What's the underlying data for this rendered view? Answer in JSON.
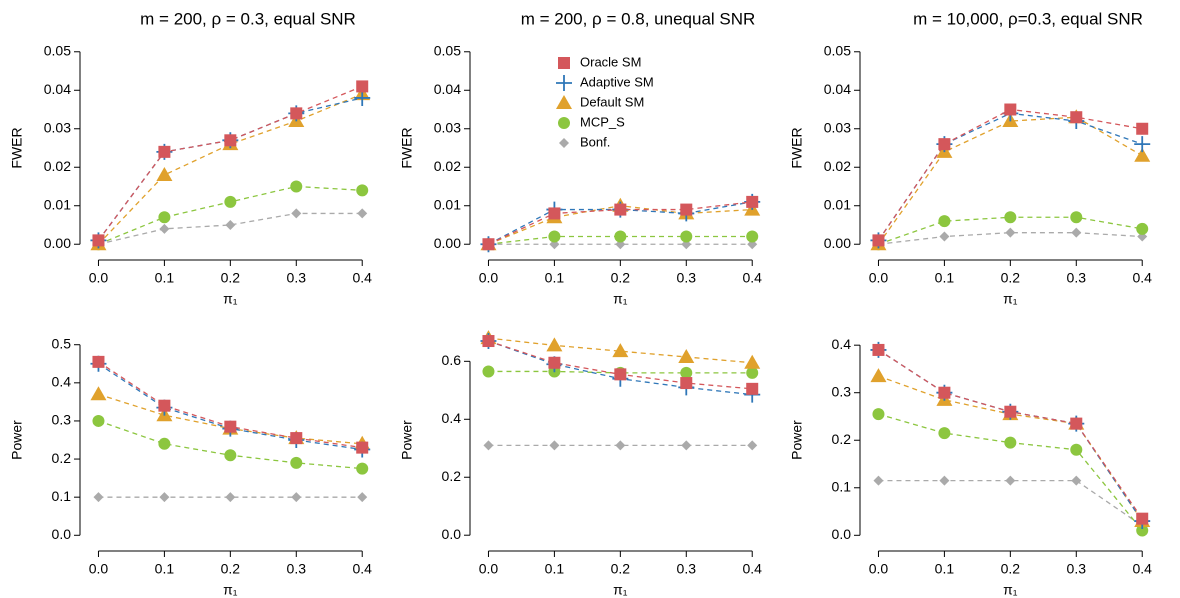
{
  "chart_data": [
    {
      "type": "line",
      "title": "m = 200, ρ = 0.3, equal SNR",
      "x_label": "π₁",
      "y_label": "FWER",
      "x": [
        0,
        0.1,
        0.2,
        0.3,
        0.4
      ],
      "xlim": [
        -0.028,
        0.43
      ],
      "xticks": [
        {
          "value": 0,
          "label": "0.0"
        },
        {
          "value": 0.1,
          "label": "0.1"
        },
        {
          "value": 0.2,
          "label": "0.2"
        },
        {
          "value": 0.3,
          "label": "0.3"
        },
        {
          "value": 0.4,
          "label": "0.4"
        }
      ],
      "ylim": [
        -0.0015,
        0.0515
      ],
      "yticks": [
        {
          "value": 0,
          "label": "0.00"
        },
        {
          "value": 0.01,
          "label": "0.01"
        },
        {
          "value": 0.02,
          "label": "0.02"
        },
        {
          "value": 0.03,
          "label": "0.03"
        },
        {
          "value": 0.04,
          "label": "0.04"
        },
        {
          "value": 0.05,
          "label": "0.05"
        }
      ],
      "series": [
        {
          "name": "Oracle SM",
          "color": "#d4575b",
          "marker": "square",
          "values": [
            0.001,
            0.024,
            0.027,
            0.034,
            0.041
          ]
        },
        {
          "name": "Adaptive SM",
          "color": "#2f77b8",
          "marker": "plus",
          "values": [
            0.001,
            0.024,
            0.027,
            0.034,
            0.038
          ]
        },
        {
          "name": "Default SM",
          "color": "#e0a12c",
          "marker": "triangle",
          "values": [
            0,
            0.018,
            0.026,
            0.032,
            0.039
          ]
        },
        {
          "name": "MCP_S",
          "color": "#8cc63f",
          "marker": "circle",
          "values": [
            0,
            0.007,
            0.011,
            0.015,
            0.014
          ]
        },
        {
          "name": "Bonf.",
          "color": "#aaaaaa",
          "marker": "diamond",
          "values": [
            0,
            0.004,
            0.005,
            0.008,
            0.008
          ]
        }
      ]
    },
    {
      "type": "line",
      "title": "m = 200, ρ = 0.8, unequal SNR",
      "x_label": "π₁",
      "y_label": "FWER",
      "legend": "top",
      "x": [
        0,
        0.1,
        0.2,
        0.3,
        0.4
      ],
      "xlim": [
        -0.028,
        0.43
      ],
      "xticks": [
        {
          "value": 0,
          "label": "0.0"
        },
        {
          "value": 0.1,
          "label": "0.1"
        },
        {
          "value": 0.2,
          "label": "0.2"
        },
        {
          "value": 0.3,
          "label": "0.3"
        },
        {
          "value": 0.4,
          "label": "0.4"
        }
      ],
      "ylim": [
        -0.0015,
        0.0515
      ],
      "yticks": [
        {
          "value": 0,
          "label": "0.00"
        },
        {
          "value": 0.01,
          "label": "0.01"
        },
        {
          "value": 0.02,
          "label": "0.02"
        },
        {
          "value": 0.03,
          "label": "0.03"
        },
        {
          "value": 0.04,
          "label": "0.04"
        },
        {
          "value": 0.05,
          "label": "0.05"
        }
      ],
      "series": [
        {
          "name": "Oracle SM",
          "color": "#d4575b",
          "marker": "square",
          "values": [
            0,
            0.008,
            0.009,
            0.009,
            0.011
          ]
        },
        {
          "name": "Adaptive SM",
          "color": "#2f77b8",
          "marker": "plus",
          "values": [
            0,
            0.009,
            0.009,
            0.008,
            0.011
          ]
        },
        {
          "name": "Default SM",
          "color": "#e0a12c",
          "marker": "triangle",
          "values": [
            0,
            0.007,
            0.01,
            0.008,
            0.009
          ]
        },
        {
          "name": "MCP_S",
          "color": "#8cc63f",
          "marker": "circle",
          "values": [
            0,
            0.002,
            0.002,
            0.002,
            0.002
          ]
        },
        {
          "name": "Bonf.",
          "color": "#aaaaaa",
          "marker": "diamond",
          "values": [
            0,
            0,
            0,
            0,
            0
          ]
        }
      ]
    },
    {
      "type": "line",
      "title": "m = 10,000, ρ=0.3, equal SNR",
      "x_label": "π₁",
      "y_label": "FWER",
      "x": [
        0,
        0.1,
        0.2,
        0.3,
        0.4
      ],
      "xlim": [
        -0.028,
        0.43
      ],
      "xticks": [
        {
          "value": 0,
          "label": "0.0"
        },
        {
          "value": 0.1,
          "label": "0.1"
        },
        {
          "value": 0.2,
          "label": "0.2"
        },
        {
          "value": 0.3,
          "label": "0.3"
        },
        {
          "value": 0.4,
          "label": "0.4"
        }
      ],
      "ylim": [
        -0.0015,
        0.0515
      ],
      "yticks": [
        {
          "value": 0,
          "label": "0.00"
        },
        {
          "value": 0.01,
          "label": "0.01"
        },
        {
          "value": 0.02,
          "label": "0.02"
        },
        {
          "value": 0.03,
          "label": "0.03"
        },
        {
          "value": 0.04,
          "label": "0.04"
        },
        {
          "value": 0.05,
          "label": "0.05"
        }
      ],
      "series": [
        {
          "name": "Oracle SM",
          "color": "#d4575b",
          "marker": "square",
          "values": [
            0.001,
            0.026,
            0.035,
            0.033,
            0.03
          ]
        },
        {
          "name": "Adaptive SM",
          "color": "#2f77b8",
          "marker": "plus",
          "values": [
            0.001,
            0.026,
            0.034,
            0.032,
            0.026
          ]
        },
        {
          "name": "Default SM",
          "color": "#e0a12c",
          "marker": "triangle",
          "values": [
            0,
            0.024,
            0.032,
            0.033,
            0.023
          ]
        },
        {
          "name": "MCP_S",
          "color": "#8cc63f",
          "marker": "circle",
          "values": [
            0,
            0.006,
            0.007,
            0.007,
            0.004
          ]
        },
        {
          "name": "Bonf.",
          "color": "#aaaaaa",
          "marker": "diamond",
          "values": [
            0,
            0.002,
            0.003,
            0.003,
            0.002
          ]
        }
      ]
    },
    {
      "type": "line",
      "x_label": "π₁",
      "y_label": "Power",
      "x": [
        0,
        0.1,
        0.2,
        0.3,
        0.4
      ],
      "xlim": [
        -0.028,
        0.43
      ],
      "xticks": [
        {
          "value": 0,
          "label": "0.0"
        },
        {
          "value": 0.1,
          "label": "0.1"
        },
        {
          "value": 0.2,
          "label": "0.2"
        },
        {
          "value": 0.3,
          "label": "0.3"
        },
        {
          "value": 0.4,
          "label": "0.4"
        }
      ],
      "ylim": [
        -0.015,
        0.515
      ],
      "yticks": [
        {
          "value": 0,
          "label": "0.0"
        },
        0.1,
        0.2,
        0.3,
        0.4,
        0.5
      ],
      "series": [
        {
          "name": "Oracle SM",
          "color": "#d4575b",
          "marker": "square",
          "values": [
            0.455,
            0.34,
            0.285,
            0.255,
            0.23
          ]
        },
        {
          "name": "Adaptive SM",
          "color": "#2f77b8",
          "marker": "plus",
          "values": [
            0.45,
            0.335,
            0.28,
            0.25,
            0.225
          ]
        },
        {
          "name": "Default SM",
          "color": "#e0a12c",
          "marker": "triangle",
          "values": [
            0.37,
            0.315,
            0.28,
            0.255,
            0.24
          ]
        },
        {
          "name": "MCP_S",
          "color": "#8cc63f",
          "marker": "circle",
          "values": [
            0.3,
            0.24,
            0.21,
            0.19,
            0.175
          ]
        },
        {
          "name": "Bonf.",
          "color": "#aaaaaa",
          "marker": "diamond",
          "values": [
            0.1,
            0.1,
            0.1,
            0.1,
            0.1
          ]
        }
      ]
    },
    {
      "type": "line",
      "x_label": "π₁",
      "y_label": "Power",
      "x": [
        0,
        0.1,
        0.2,
        0.3,
        0.4
      ],
      "xlim": [
        -0.028,
        0.43
      ],
      "xticks": [
        {
          "value": 0,
          "label": "0.0"
        },
        {
          "value": 0.1,
          "label": "0.1"
        },
        {
          "value": 0.2,
          "label": "0.2"
        },
        {
          "value": 0.3,
          "label": "0.3"
        },
        {
          "value": 0.4,
          "label": "0.4"
        }
      ],
      "ylim": [
        -0.02,
        0.677
      ],
      "yticks": [
        {
          "value": 0,
          "label": "0.0"
        },
        0.2,
        0.4,
        0.6
      ],
      "series": [
        {
          "name": "Oracle SM",
          "color": "#d4575b",
          "marker": "square",
          "values": [
            0.67,
            0.595,
            0.555,
            0.525,
            0.505
          ]
        },
        {
          "name": "Adaptive SM",
          "color": "#2f77b8",
          "marker": "plus",
          "values": [
            0.67,
            0.59,
            0.54,
            0.51,
            0.485
          ]
        },
        {
          "name": "Default SM",
          "color": "#e0a12c",
          "marker": "triangle",
          "values": [
            0.68,
            0.655,
            0.635,
            0.615,
            0.595
          ]
        },
        {
          "name": "MCP_S",
          "color": "#8cc63f",
          "marker": "circle",
          "values": [
            0.565,
            0.565,
            0.56,
            0.56,
            0.56
          ]
        },
        {
          "name": "Bonf.",
          "color": "#aaaaaa",
          "marker": "diamond",
          "values": [
            0.31,
            0.31,
            0.31,
            0.31,
            0.31
          ]
        }
      ]
    },
    {
      "type": "line",
      "x_label": "π₁",
      "y_label": "Power",
      "x": [
        0,
        0.1,
        0.2,
        0.3,
        0.4
      ],
      "xlim": [
        -0.028,
        0.43
      ],
      "xticks": [
        {
          "value": 0,
          "label": "0.0"
        },
        {
          "value": 0.1,
          "label": "0.1"
        },
        {
          "value": 0.2,
          "label": "0.2"
        },
        {
          "value": 0.3,
          "label": "0.3"
        },
        {
          "value": 0.4,
          "label": "0.4"
        }
      ],
      "ylim": [
        -0.012,
        0.413
      ],
      "yticks": [
        {
          "value": 0,
          "label": "0.0"
        },
        0.1,
        0.2,
        0.3,
        0.4
      ],
      "series": [
        {
          "name": "Oracle SM",
          "color": "#d4575b",
          "marker": "square",
          "values": [
            0.39,
            0.3,
            0.26,
            0.235,
            0.035
          ]
        },
        {
          "name": "Adaptive SM",
          "color": "#2f77b8",
          "marker": "plus",
          "values": [
            0.39,
            0.3,
            0.26,
            0.235,
            0.03
          ]
        },
        {
          "name": "Default SM",
          "color": "#e0a12c",
          "marker": "triangle",
          "values": [
            0.335,
            0.285,
            0.255,
            0.235,
            0.03
          ]
        },
        {
          "name": "MCP_S",
          "color": "#8cc63f",
          "marker": "circle",
          "values": [
            0.255,
            0.215,
            0.195,
            0.18,
            0.01
          ]
        },
        {
          "name": "Bonf.",
          "color": "#aaaaaa",
          "marker": "diamond",
          "values": [
            0.115,
            0.115,
            0.115,
            0.115,
            0.02
          ]
        }
      ]
    }
  ]
}
